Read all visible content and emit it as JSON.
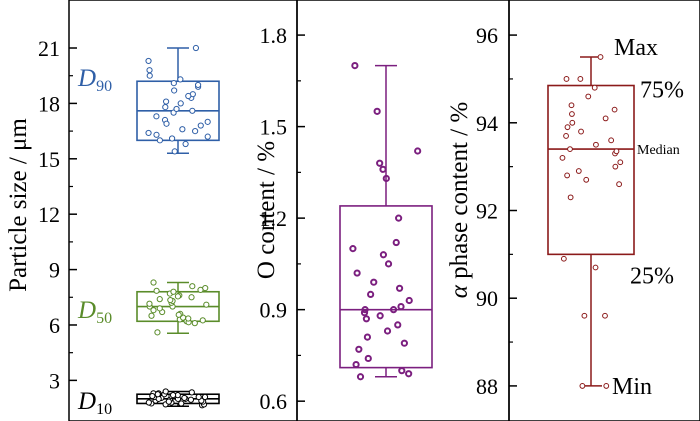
{
  "chart_data": [
    {
      "type": "box",
      "ylabel": "Particle size / μm",
      "ylim": [
        0.8,
        23.6
      ],
      "yticks": [
        3,
        6,
        9,
        12,
        15,
        18,
        21
      ],
      "series": [
        {
          "name": "D10",
          "name_main": "D",
          "name_sub": "10",
          "color": "#000000",
          "box": {
            "min": 1.6,
            "q1": 1.75,
            "median": 2.0,
            "q3": 2.25,
            "max": 2.4
          },
          "points": [
            1.65,
            1.7,
            1.75,
            1.8,
            1.85,
            1.9,
            1.95,
            2.0,
            2.0,
            2.05,
            2.1,
            2.1,
            2.15,
            2.2,
            2.2,
            2.25,
            2.3,
            2.35,
            2.4,
            1.7,
            1.8,
            1.9,
            2.0,
            2.1,
            2.2,
            2.3,
            1.75,
            1.85,
            1.95,
            2.05,
            2.15,
            2.25
          ]
        },
        {
          "name": "D50",
          "name_main": "D",
          "name_sub": "50",
          "color": "#5a8c2a",
          "box": {
            "min": 5.55,
            "q1": 6.2,
            "median": 7.0,
            "q3": 7.8,
            "max": 8.3
          },
          "points": [
            5.6,
            6.1,
            6.2,
            6.25,
            6.3,
            6.4,
            6.5,
            6.6,
            6.7,
            6.8,
            6.9,
            7.0,
            7.0,
            7.1,
            7.2,
            7.3,
            7.4,
            7.5,
            7.6,
            7.7,
            7.8,
            7.85,
            7.9,
            8.0,
            8.1,
            8.3,
            6.15,
            6.35,
            6.55,
            7.15,
            7.35,
            7.55
          ]
        },
        {
          "name": "D90",
          "name_main": "D",
          "name_sub": "90",
          "color": "#2f5fa7",
          "box": {
            "min": 15.3,
            "q1": 16.0,
            "median": 17.6,
            "q3": 19.2,
            "max": 21.0
          },
          "points": [
            15.4,
            15.8,
            16.0,
            16.1,
            16.3,
            16.4,
            16.5,
            16.6,
            16.8,
            17.0,
            17.1,
            17.3,
            17.5,
            17.6,
            17.8,
            18.0,
            18.1,
            18.3,
            18.5,
            18.7,
            18.9,
            19.1,
            19.3,
            19.5,
            19.8,
            20.3,
            21.0,
            16.2,
            16.9,
            17.7,
            18.4,
            19.0
          ]
        }
      ]
    },
    {
      "type": "box",
      "ylabel": "O content / %",
      "ylim": [
        0.535,
        1.915
      ],
      "yticks": [
        0.6,
        0.9,
        1.2,
        1.5,
        1.8
      ],
      "tick_labels": [
        "0.6",
        "0.9",
        "1.2",
        "1.5",
        "1.8"
      ],
      "series": [
        {
          "name": "",
          "color": "#7b1f7f",
          "box": {
            "min": 0.68,
            "q1": 0.71,
            "median": 0.9,
            "q3": 1.24,
            "max": 1.7
          },
          "points": [
            0.68,
            0.69,
            0.7,
            0.72,
            0.74,
            0.77,
            0.79,
            0.81,
            0.83,
            0.85,
            0.87,
            0.88,
            0.89,
            0.9,
            0.9,
            0.91,
            0.93,
            0.95,
            0.97,
            0.99,
            1.02,
            1.05,
            1.08,
            1.1,
            1.12,
            1.2,
            1.33,
            1.36,
            1.38,
            1.42,
            1.55,
            1.7
          ]
        }
      ]
    },
    {
      "type": "box",
      "ylabel": "α phase content / %",
      "ylabel_alpha": "α",
      "ylabel_rest": " phase content / %",
      "ylim": [
        87.2,
        96.8
      ],
      "yticks": [
        88,
        90,
        92,
        94,
        96
      ],
      "annotations": {
        "max": "Max",
        "q3": "75%",
        "median": "Median",
        "q1": "25%",
        "min": "Min"
      },
      "series": [
        {
          "name": "",
          "color": "#8b1a1a",
          "box": {
            "min": 88.0,
            "q1": 91.0,
            "median": 93.4,
            "q3": 94.85,
            "max": 95.5
          },
          "points": [
            88.0,
            88.0,
            89.6,
            89.6,
            90.7,
            90.9,
            92.3,
            92.6,
            92.7,
            92.8,
            92.9,
            93.0,
            93.1,
            93.2,
            93.3,
            93.4,
            93.5,
            93.6,
            93.7,
            93.8,
            93.9,
            94.0,
            94.1,
            94.2,
            94.3,
            94.4,
            94.6,
            94.8,
            95.0,
            95.0,
            95.5,
            93.35
          ]
        }
      ]
    }
  ]
}
